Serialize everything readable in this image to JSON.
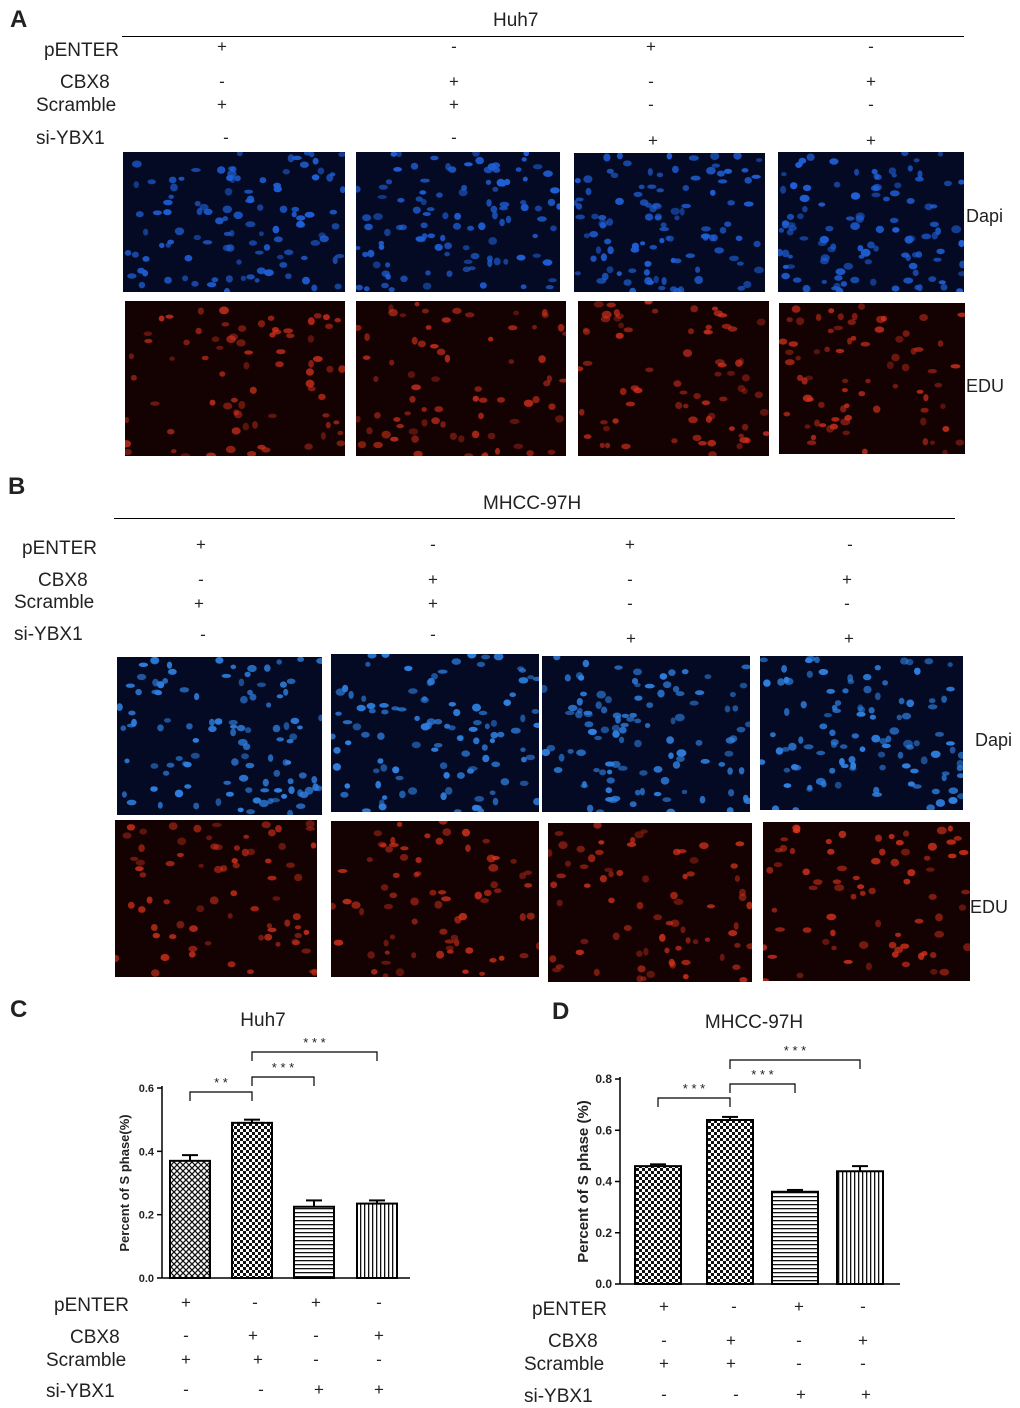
{
  "panel_a": {
    "letter": "A",
    "title": "Huh7",
    "rows": [
      "pENTER",
      "CBX8",
      "Scramble",
      "si-YBX1"
    ],
    "signs": [
      [
        "+",
        "-",
        "+",
        "-"
      ],
      [
        "-",
        "+",
        "-",
        "+"
      ],
      [
        "+",
        "+",
        "-",
        "-"
      ],
      [
        "-",
        "-",
        "+",
        "+"
      ]
    ],
    "channels": [
      "Dapi",
      "EDU"
    ],
    "colors": {
      "dapi": "#1f5fd6",
      "edu": "#d8321f"
    }
  },
  "panel_b": {
    "letter": "B",
    "title": "MHCC-97H",
    "rows": [
      "pENTER",
      "CBX8",
      "Scramble",
      "si-YBX1"
    ],
    "signs": [
      [
        "+",
        "-",
        "+",
        "-"
      ],
      [
        "-",
        "+",
        "-",
        "+"
      ],
      [
        "+",
        "+",
        "-",
        "-"
      ],
      [
        "-",
        "-",
        "+",
        "+"
      ]
    ],
    "channels": [
      "Dapi",
      "EDU"
    ],
    "colors": {
      "dapi": "#2f80e0",
      "edu": "#e0341f"
    }
  },
  "chart_data": [
    {
      "letter": "C",
      "type": "bar",
      "title": "Huh7",
      "ylabel": "Percent of S phase(%)",
      "ylim": [
        0,
        0.6
      ],
      "yticks": [
        "0.0",
        "0.2",
        "0.4",
        "0.6"
      ],
      "values": [
        0.37,
        0.49,
        0.225,
        0.235
      ],
      "errors": [
        0.018,
        0.01,
        0.02,
        0.01
      ],
      "patterns": [
        "crosshatch",
        "checker",
        "horizontal",
        "vertical"
      ],
      "significance": [
        {
          "from": 0,
          "to": 1,
          "label": "* *"
        },
        {
          "from": 1,
          "to": 2,
          "label": "* * *"
        },
        {
          "from": 1,
          "to": 3,
          "label": "* * *"
        }
      ],
      "rows": [
        "pENTER",
        "CBX8",
        "Scramble",
        "si-YBX1"
      ],
      "signs": [
        [
          "+",
          "-",
          "+",
          "-"
        ],
        [
          "-",
          "+",
          "-",
          "+"
        ],
        [
          "+",
          "+",
          "-",
          "-"
        ],
        [
          "-",
          "-",
          "+",
          "+"
        ]
      ]
    },
    {
      "letter": "D",
      "type": "bar",
      "title": "MHCC-97H",
      "ylabel": "Percent of S phase (%)",
      "ylim": [
        0,
        0.8
      ],
      "yticks": [
        "0.0",
        "0.2",
        "0.4",
        "0.6",
        "0.8"
      ],
      "values": [
        0.46,
        0.64,
        0.36,
        0.44
      ],
      "errors": [
        0.007,
        0.012,
        0.007,
        0.02
      ],
      "patterns": [
        "checker",
        "checker",
        "horizontal",
        "vertical"
      ],
      "significance": [
        {
          "from": 0,
          "to": 1,
          "label": "* * *"
        },
        {
          "from": 1,
          "to": 2,
          "label": "* * *"
        },
        {
          "from": 1,
          "to": 3,
          "label": "* * *"
        }
      ],
      "rows": [
        "pENTER",
        "CBX8",
        "Scramble",
        "si-YBX1"
      ],
      "signs": [
        [
          "+",
          "-",
          "+",
          "-"
        ],
        [
          "-",
          "+",
          "-",
          "+"
        ],
        [
          "+",
          "+",
          "-",
          "-"
        ],
        [
          "-",
          "-",
          "+",
          "+"
        ]
      ]
    }
  ]
}
